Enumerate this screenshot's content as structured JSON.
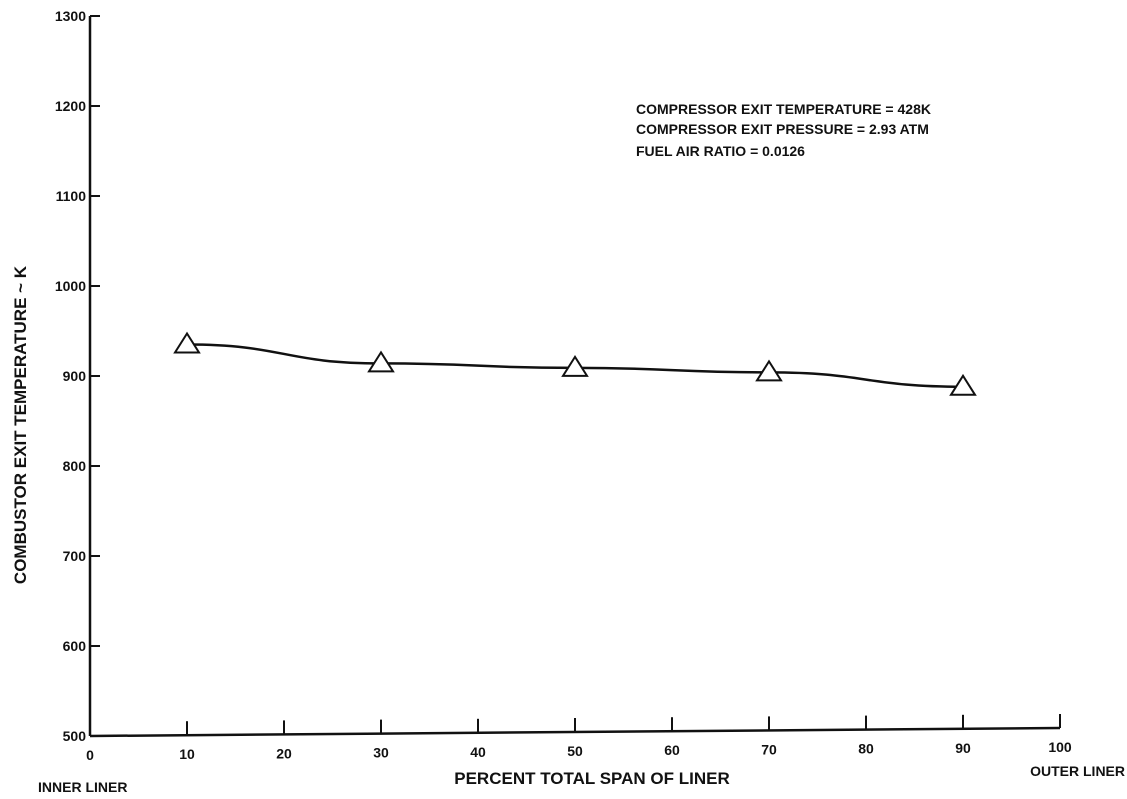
{
  "chart_data": {
    "type": "line",
    "title": "",
    "xlabel": "PERCENT TOTAL SPAN OF LINER",
    "ylabel": "COMBUSTOR EXIT TEMPERATURE ~ K",
    "xlim": [
      0,
      100
    ],
    "ylim": [
      500,
      1300
    ],
    "x_ticks": [
      0,
      10,
      20,
      30,
      40,
      50,
      60,
      70,
      80,
      90,
      100
    ],
    "x_tick_labels": [
      "0",
      "10",
      "20",
      "30",
      "40",
      "50",
      "60",
      "70",
      "80",
      "90",
      "100"
    ],
    "y_ticks": [
      500,
      600,
      700,
      800,
      900,
      1000,
      1100,
      1200,
      1300
    ],
    "y_tick_labels": [
      "500",
      "600",
      "700",
      "800",
      "900",
      "1000",
      "1100",
      "1200",
      "1300"
    ],
    "x_end_labels": {
      "left": "INNER LINER",
      "right": "OUTER LINER"
    },
    "grid": false,
    "marker": "triangle",
    "series": [
      {
        "x": [
          10,
          30,
          50,
          70,
          90
        ],
        "y": [
          935,
          914,
          909,
          904,
          888
        ]
      }
    ],
    "annotations": [
      "COMPRESSOR EXIT TEMPERATURE = 428K",
      "COMPRESSOR EXIT PRESSURE = 2.93 ATM",
      "FUEL AIR RATIO = 0.0126"
    ]
  }
}
